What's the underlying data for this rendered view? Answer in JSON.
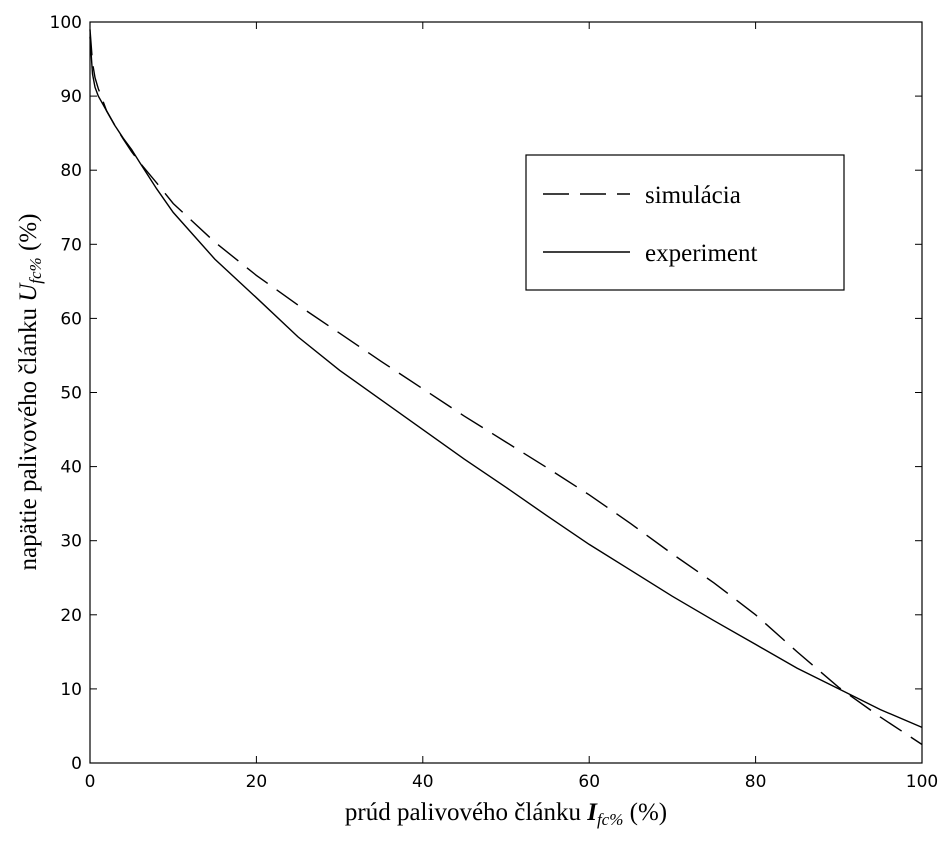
{
  "chart_data": {
    "type": "line",
    "xlabel": {
      "main": "prúd palivového článku ",
      "symbol": "I",
      "sub": "fc%",
      "unit": " (%)"
    },
    "ylabel": {
      "main": "napätie palivového článku ",
      "symbol": "U",
      "sub": "fc%",
      "unit": " (%)"
    },
    "xlim": [
      0,
      100
    ],
    "ylim": [
      0,
      100
    ],
    "xticks": [
      "0",
      "20",
      "40",
      "60",
      "80",
      "100"
    ],
    "yticks": [
      "0",
      "10",
      "20",
      "30",
      "40",
      "50",
      "60",
      "70",
      "80",
      "90",
      "100"
    ],
    "grid": false,
    "legend": "top-right",
    "series": [
      {
        "name": "simulácia",
        "style": "dashed",
        "color": "#000000",
        "x": [
          0,
          0.3,
          0.6,
          1,
          1.5,
          2,
          3,
          4,
          5,
          6,
          8,
          10,
          15,
          20,
          25,
          30,
          35,
          40,
          45,
          50,
          55,
          60,
          65,
          70,
          75,
          80,
          85,
          90,
          95,
          100
        ],
        "y": [
          99,
          94.5,
          92.5,
          91,
          89.5,
          88,
          86,
          84.2,
          82.5,
          81,
          78.3,
          75.5,
          70.3,
          65.8,
          61.8,
          58,
          54.2,
          50.5,
          46.8,
          43.3,
          39.8,
          36.2,
          32.3,
          28.2,
          24.3,
          20,
          15,
          10.2,
          6.2,
          2.5
        ]
      },
      {
        "name": "experiment",
        "style": "solid",
        "color": "#000000",
        "x": [
          0,
          0.3,
          0.6,
          1,
          1.5,
          2,
          3,
          4,
          5,
          6,
          8,
          10,
          15,
          20,
          25,
          30,
          35,
          40,
          45,
          50,
          55,
          60,
          65,
          70,
          75,
          80,
          85,
          90,
          95,
          100
        ],
        "y": [
          98,
          93,
          91.2,
          90,
          89,
          88,
          86,
          84.3,
          82.8,
          81,
          77.5,
          74.3,
          68,
          62.8,
          57.5,
          53,
          49,
          45,
          41,
          37.2,
          33.3,
          29.5,
          26,
          22.5,
          19.2,
          16,
          12.8,
          10,
          7.2,
          4.8
        ]
      }
    ]
  }
}
